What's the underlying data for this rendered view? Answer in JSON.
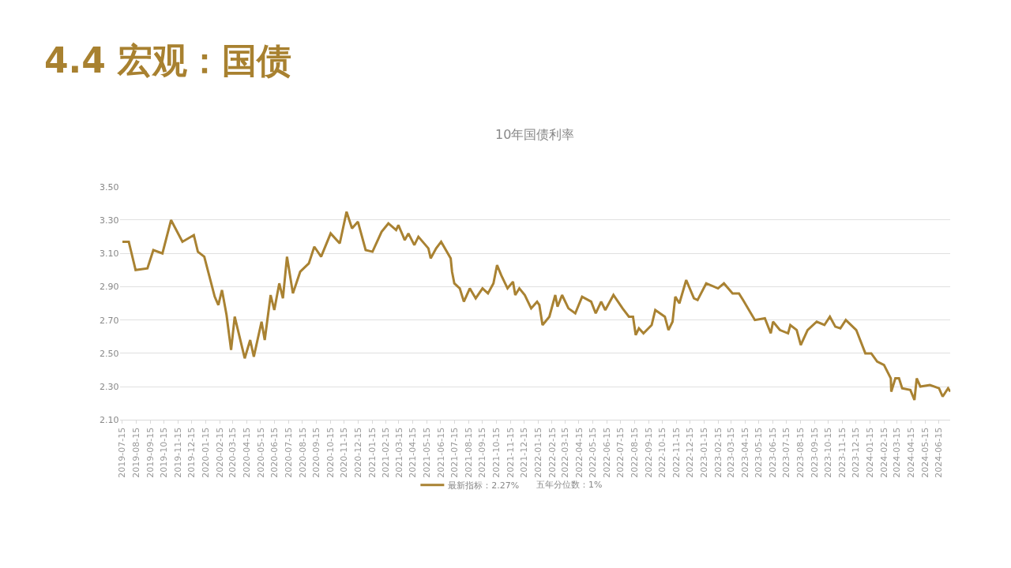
{
  "chart_data": {
    "type": "line",
    "title": "4.4 宏观：国债",
    "subtitle": "10年国债利率",
    "annotations": [
      "五年分位数：1%"
    ],
    "x": [
      "2019-07-16",
      "2019-07-30",
      "2019-08-14",
      "2019-09-09",
      "2019-09-22",
      "2019-10-12",
      "2019-10-31",
      "2019-11-25",
      "2019-12-20",
      "2019-12-29",
      "2020-01-12",
      "2020-02-04",
      "2020-02-12",
      "2020-02-20",
      "2020-03-01",
      "2020-03-11",
      "2020-03-19",
      "2020-04-10",
      "2020-04-22",
      "2020-04-30",
      "2020-05-17",
      "2020-05-24",
      "2020-06-06",
      "2020-06-14",
      "2020-06-25",
      "2020-07-03",
      "2020-07-12",
      "2020-07-25",
      "2020-08-10",
      "2020-08-29",
      "2020-09-10",
      "2020-09-25",
      "2020-10-16",
      "2020-11-05",
      "2020-11-20",
      "2020-12-02",
      "2020-12-15",
      "2021-01-01",
      "2021-01-16",
      "2021-02-05",
      "2021-02-20",
      "2021-03-09",
      "2021-03-14",
      "2021-03-28",
      "2021-04-05",
      "2021-04-18",
      "2021-04-27",
      "2021-05-19",
      "2021-05-24",
      "2021-06-05",
      "2021-06-16",
      "2021-07-07",
      "2021-07-10",
      "2021-07-15",
      "2021-07-27",
      "2021-08-05",
      "2021-08-18",
      "2021-08-31",
      "2021-09-15",
      "2021-09-27",
      "2021-10-09",
      "2021-10-17",
      "2021-10-26",
      "2021-11-09",
      "2021-11-21",
      "2021-11-26",
      "2021-12-05",
      "2021-12-17",
      "2021-12-31",
      "2022-01-13",
      "2022-01-18",
      "2022-01-25",
      "2022-02-09",
      "2022-02-22",
      "2022-02-27",
      "2022-03-09",
      "2022-03-23",
      "2022-04-07",
      "2022-04-22",
      "2022-05-12",
      "2022-05-22",
      "2022-06-03",
      "2022-06-12",
      "2022-06-30",
      "2022-07-20",
      "2022-08-03",
      "2022-08-12",
      "2022-08-18",
      "2022-08-25",
      "2022-09-04",
      "2022-09-22",
      "2022-09-30",
      "2022-10-21",
      "2022-10-29",
      "2022-11-07",
      "2022-11-13",
      "2022-11-22",
      "2022-12-07",
      "2022-12-24",
      "2023-01-01",
      "2023-01-20",
      "2023-02-15",
      "2023-02-28",
      "2023-03-19",
      "2023-04-02",
      "2023-04-11",
      "2023-05-07",
      "2023-05-29",
      "2023-06-11",
      "2023-06-16",
      "2023-07-01",
      "2023-07-19",
      "2023-07-24",
      "2023-08-07",
      "2023-08-16",
      "2023-08-31",
      "2023-09-20",
      "2023-10-07",
      "2023-10-19",
      "2023-10-31",
      "2023-11-11",
      "2023-11-23",
      "2023-12-16",
      "2024-01-05",
      "2024-01-18",
      "2024-01-31",
      "2024-02-15",
      "2024-03-01",
      "2024-03-02",
      "2024-03-11",
      "2024-03-19",
      "2024-03-26",
      "2024-04-13",
      "2024-04-22",
      "2024-04-27",
      "2024-05-05",
      "2024-05-26",
      "2024-06-15",
      "2024-06-23",
      "2024-07-05",
      "2024-07-10"
    ],
    "series": [
      {
        "name": "最新指标：2.27%",
        "color": "#a98232",
        "values": [
          3.17,
          3.17,
          3.0,
          3.01,
          3.12,
          3.1,
          3.3,
          3.17,
          3.21,
          3.11,
          3.08,
          2.84,
          2.79,
          2.88,
          2.73,
          2.52,
          2.72,
          2.47,
          2.58,
          2.48,
          2.69,
          2.58,
          2.85,
          2.76,
          2.92,
          2.83,
          3.08,
          2.86,
          2.99,
          3.04,
          3.14,
          3.08,
          3.22,
          3.16,
          3.35,
          3.25,
          3.29,
          3.12,
          3.11,
          3.23,
          3.28,
          3.24,
          3.27,
          3.18,
          3.22,
          3.15,
          3.2,
          3.13,
          3.07,
          3.13,
          3.17,
          3.07,
          2.99,
          2.92,
          2.89,
          2.81,
          2.89,
          2.83,
          2.89,
          2.86,
          2.92,
          3.03,
          2.97,
          2.89,
          2.93,
          2.85,
          2.89,
          2.85,
          2.77,
          2.81,
          2.79,
          2.67,
          2.72,
          2.85,
          2.78,
          2.85,
          2.77,
          2.74,
          2.84,
          2.81,
          2.74,
          2.81,
          2.76,
          2.85,
          2.77,
          2.72,
          2.72,
          2.61,
          2.65,
          2.62,
          2.67,
          2.76,
          2.72,
          2.64,
          2.69,
          2.84,
          2.8,
          2.94,
          2.83,
          2.82,
          2.92,
          2.89,
          2.92,
          2.86,
          2.86,
          2.82,
          2.7,
          2.71,
          2.62,
          2.69,
          2.64,
          2.62,
          2.67,
          2.64,
          2.55,
          2.64,
          2.69,
          2.67,
          2.72,
          2.66,
          2.65,
          2.7,
          2.64,
          2.5,
          2.5,
          2.45,
          2.43,
          2.35,
          2.27,
          2.35,
          2.35,
          2.29,
          2.28,
          2.22,
          2.35,
          2.3,
          2.31,
          2.29,
          2.24,
          2.29,
          2.27
        ]
      }
    ],
    "xlim": [
      "2019-07-10",
      "2024-07-10"
    ],
    "xticks": [
      "2019-07-15",
      "2019-08-15",
      "2019-09-15",
      "2019-10-15",
      "2019-11-15",
      "2019-12-15",
      "2020-01-15",
      "2020-02-15",
      "2020-03-15",
      "2020-04-15",
      "2020-05-15",
      "2020-06-15",
      "2020-07-15",
      "2020-08-15",
      "2020-09-15",
      "2020-10-15",
      "2020-11-15",
      "2020-12-15",
      "2021-01-15",
      "2021-02-15",
      "2021-03-15",
      "2021-04-15",
      "2021-05-15",
      "2021-06-15",
      "2021-07-15",
      "2021-08-15",
      "2021-09-15",
      "2021-10-15",
      "2021-11-15",
      "2021-12-15",
      "2022-01-15",
      "2022-02-15",
      "2022-03-15",
      "2022-04-15",
      "2022-05-15",
      "2022-06-15",
      "2022-07-15",
      "2022-08-15",
      "2022-09-15",
      "2022-10-15",
      "2022-11-15",
      "2022-12-15",
      "2023-01-15",
      "2023-02-15",
      "2023-03-15",
      "2023-04-15",
      "2023-05-15",
      "2023-06-15",
      "2023-07-15",
      "2023-08-15",
      "2023-09-15",
      "2023-10-15",
      "2023-11-15",
      "2023-12-15",
      "2024-01-15",
      "2024-02-15",
      "2024-03-15",
      "2024-04-15",
      "2024-05-15",
      "2024-06-15"
    ],
    "ylim": [
      2.1,
      3.5
    ],
    "yticks": [
      {
        "value": 2.1,
        "label": "2.10"
      },
      {
        "value": 2.3,
        "label": "2.30"
      },
      {
        "value": 2.5,
        "label": "2.50"
      },
      {
        "value": 2.7,
        "label": "2.70"
      },
      {
        "value": 2.9,
        "label": "2.90"
      },
      {
        "value": 3.1,
        "label": "3.10"
      },
      {
        "value": 3.3,
        "label": "3.30"
      },
      {
        "value": 3.5,
        "label": "3.50"
      }
    ],
    "grid": "y",
    "legend": "bottom",
    "marker": "none",
    "line_style": "solid"
  }
}
